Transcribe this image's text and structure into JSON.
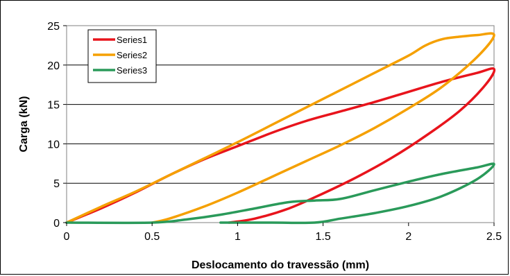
{
  "chart_data": {
    "type": "line",
    "title": "",
    "xlabel": "Deslocamento do travessão (mm)",
    "ylabel": "Carga (kN)",
    "xlim": [
      0,
      2.5
    ],
    "ylim": [
      0,
      25
    ],
    "x_ticks": [
      "0",
      "0.5",
      "1",
      "1.5",
      "2",
      "2.5"
    ],
    "y_ticks": [
      "0",
      "5",
      "10",
      "15",
      "20",
      "25"
    ],
    "grid": "horizontal",
    "legend_position": "top-left",
    "series": [
      {
        "name": "Series1",
        "color": "#e8141c",
        "x": [
          0,
          0.2,
          0.4,
          0.6,
          0.8,
          1.0,
          1.2,
          1.4,
          1.6,
          1.8,
          2.0,
          2.2,
          2.4,
          2.5,
          2.45,
          2.3,
          2.1,
          1.9,
          1.7,
          1.5,
          1.3,
          1.1,
          0.95
        ],
        "y": [
          0,
          1.8,
          3.8,
          6.0,
          8.0,
          9.7,
          11.4,
          12.9,
          14.1,
          15.3,
          16.6,
          17.9,
          19.0,
          19.5,
          17.5,
          14.2,
          11.0,
          8.2,
          5.8,
          3.7,
          1.8,
          0.5,
          0
        ]
      },
      {
        "name": "Series2",
        "color": "#f5a000",
        "x": [
          0,
          0.2,
          0.4,
          0.6,
          0.8,
          1.0,
          1.2,
          1.4,
          1.6,
          1.8,
          2.0,
          2.1,
          2.2,
          2.3,
          2.4,
          2.5,
          2.4,
          2.2,
          2.0,
          1.8,
          1.6,
          1.4,
          1.2,
          1.0,
          0.8,
          0.6,
          0.5
        ],
        "y": [
          0,
          2.0,
          3.9,
          6.0,
          8.1,
          10.2,
          12.4,
          14.6,
          16.8,
          19.0,
          21.2,
          22.5,
          23.3,
          23.6,
          23.8,
          23.8,
          21.0,
          17.3,
          14.5,
          12.0,
          9.8,
          7.8,
          5.8,
          3.8,
          2.0,
          0.5,
          0
        ]
      },
      {
        "name": "Series3",
        "color": "#2a9a5a",
        "x": [
          0,
          0.5,
          0.7,
          0.9,
          1.1,
          1.3,
          1.45,
          1.6,
          1.8,
          2.0,
          2.2,
          2.4,
          2.5,
          2.4,
          2.2,
          2.0,
          1.8,
          1.6,
          1.45,
          1.2,
          0.9
        ],
        "y": [
          0,
          0,
          0.4,
          1.0,
          1.8,
          2.6,
          2.8,
          3.0,
          4.1,
          5.2,
          6.2,
          7.0,
          7.4,
          5.5,
          3.4,
          2.1,
          1.2,
          0.5,
          0,
          0,
          0
        ]
      }
    ]
  }
}
